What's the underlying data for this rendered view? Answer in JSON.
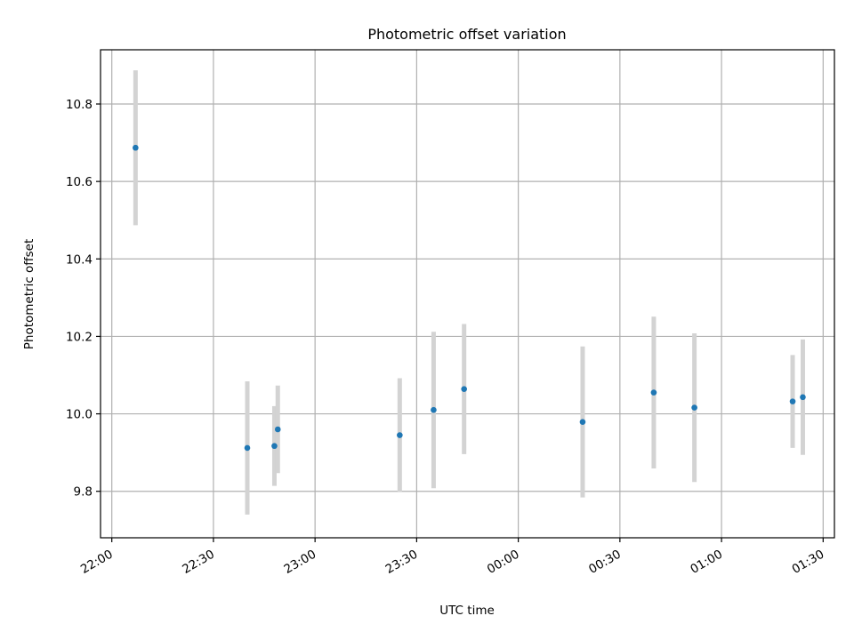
{
  "chart_data": {
    "type": "scatter",
    "title": "Photometric offset variation",
    "xlabel": "UTC time",
    "ylabel": "Photometric offset",
    "x_tick_labels": [
      "22:00",
      "22:30",
      "23:00",
      "23:30",
      "00:00",
      "00:30",
      "01:00",
      "01:30"
    ],
    "y_tick_labels": [
      "9.8",
      "10.0",
      "10.2",
      "10.4",
      "10.6",
      "10.8"
    ],
    "y_ticks": [
      9.8,
      10.0,
      10.2,
      10.4,
      10.6,
      10.8
    ],
    "xlim": [
      "21:56:40",
      "01:33:20"
    ],
    "ylim": [
      9.68,
      10.94
    ],
    "grid": true,
    "marker_color": "#1f77b4",
    "errorbar_color": "#d3d3d3",
    "points": [
      {
        "x": "22:07",
        "y": 10.687,
        "yerr": 0.2
      },
      {
        "x": "22:40",
        "y": 9.912,
        "yerr": 0.172
      },
      {
        "x": "22:48",
        "y": 9.917,
        "yerr": 0.103
      },
      {
        "x": "22:49",
        "y": 9.96,
        "yerr": 0.113
      },
      {
        "x": "23:25",
        "y": 9.945,
        "yerr": 0.147
      },
      {
        "x": "23:35",
        "y": 10.01,
        "yerr": 0.202
      },
      {
        "x": "23:44",
        "y": 10.064,
        "yerr": 0.168
      },
      {
        "x": "00:19",
        "y": 9.979,
        "yerr": 0.195
      },
      {
        "x": "00:40",
        "y": 10.055,
        "yerr": 0.196
      },
      {
        "x": "00:52",
        "y": 10.016,
        "yerr": 0.192
      },
      {
        "x": "01:21",
        "y": 10.032,
        "yerr": 0.12
      },
      {
        "x": "01:24",
        "y": 10.043,
        "yerr": 0.149
      }
    ]
  }
}
